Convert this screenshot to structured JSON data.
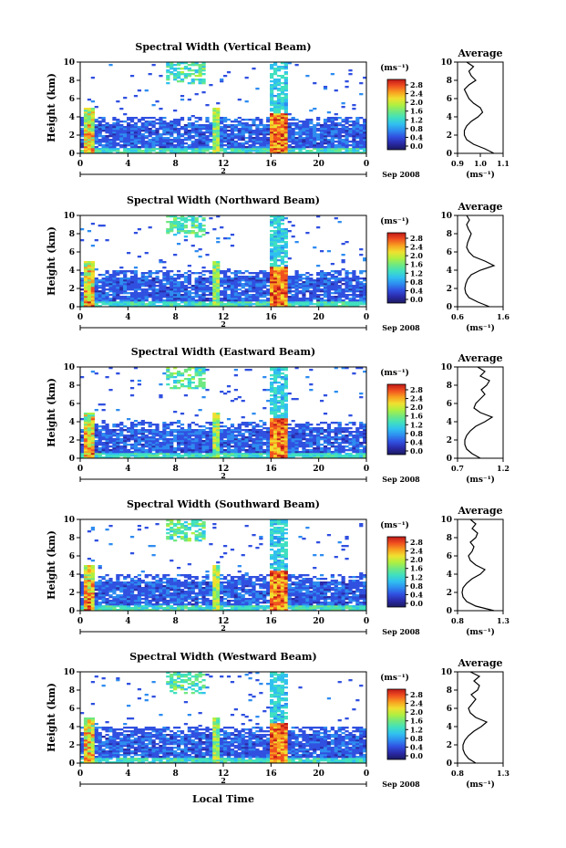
{
  "xlabel": "Local Time",
  "colorbar_unit": "(ms⁻¹)",
  "colorbar_ticks": [
    "0.0",
    "0.4",
    "0.8",
    "1.2",
    "1.6",
    "2.0",
    "2.4",
    "2.8"
  ],
  "colormap": [
    "#1a1a60",
    "#2a2aa8",
    "#3050e0",
    "#2e8cf0",
    "#30c0f0",
    "#40e0c0",
    "#70e880",
    "#b0f040",
    "#f0e030",
    "#f8a020",
    "#f05020",
    "#c01818"
  ],
  "chart_data": [
    {
      "type": "heatmap",
      "title": "Spectral Width (Vertical Beam)",
      "ylabel": "Height (km)",
      "ylim": [
        0,
        10
      ],
      "yticks": [
        0,
        2,
        4,
        6,
        8,
        10
      ],
      "xlim": [
        0,
        24
      ],
      "xticks": [
        "0",
        "4",
        "8",
        "12",
        "16",
        "20",
        "0"
      ],
      "date_marker": "2",
      "date_label": "Sep 2008",
      "average": {
        "title": "Average",
        "xlim": [
          0.9,
          1.1
        ],
        "xticks": [
          "0.9",
          "1.0",
          "1.1"
        ],
        "xlabel": "(ms⁻¹)",
        "profile_x": [
          1.06,
          1.02,
          0.97,
          0.94,
          0.93,
          0.93,
          0.94,
          0.96,
          0.99,
          1.01,
          1.0,
          0.97,
          0.95,
          0.94,
          0.93,
          0.95,
          0.98,
          0.96,
          0.95,
          0.97,
          0.94
        ]
      }
    },
    {
      "type": "heatmap",
      "title": "Spectral Width (Northward Beam)",
      "ylabel": "Height (km)",
      "ylim": [
        0,
        10
      ],
      "yticks": [
        0,
        2,
        4,
        6,
        8,
        10
      ],
      "xlim": [
        0,
        24
      ],
      "xticks": [
        "0",
        "4",
        "8",
        "12",
        "16",
        "20",
        "0"
      ],
      "date_marker": "2",
      "date_label": "Sep 2008",
      "average": {
        "title": "Average",
        "xlim": [
          0.6,
          1.6
        ],
        "xticks": [
          "0.6",
          "1.6"
        ],
        "xlabel": "(ms⁻¹)",
        "profile_x": [
          1.3,
          1.05,
          0.85,
          0.78,
          0.76,
          0.78,
          0.82,
          0.9,
          1.1,
          1.4,
          1.2,
          0.95,
          0.85,
          0.8,
          0.82,
          0.86,
          0.9,
          0.84,
          0.8,
          0.86,
          0.8
        ]
      }
    },
    {
      "type": "heatmap",
      "title": "Spectral Width (Eastward Beam)",
      "ylabel": "Height (km)",
      "ylim": [
        0,
        10
      ],
      "yticks": [
        0,
        2,
        4,
        6,
        8,
        10
      ],
      "xlim": [
        0,
        24
      ],
      "xticks": [
        "0",
        "4",
        "8",
        "12",
        "16",
        "20",
        "0"
      ],
      "date_marker": "2",
      "date_label": "Sep 2008",
      "average": {
        "title": "Average",
        "xlim": [
          0.7,
          1.2
        ],
        "xticks": [
          "0.7",
          "1.2"
        ],
        "xlabel": "(ms⁻¹)",
        "profile_x": [
          0.95,
          0.86,
          0.8,
          0.78,
          0.78,
          0.8,
          0.84,
          0.9,
          1.0,
          1.08,
          0.95,
          0.88,
          0.9,
          0.95,
          1.0,
          0.96,
          1.02,
          1.05,
          0.95,
          1.0,
          0.92
        ]
      }
    },
    {
      "type": "heatmap",
      "title": "Spectral Width (Southward Beam)",
      "ylabel": "Height (km)",
      "ylim": [
        0,
        10
      ],
      "yticks": [
        0,
        2,
        4,
        6,
        8,
        10
      ],
      "xlim": [
        0,
        24
      ],
      "xticks": [
        "0",
        "4",
        "8",
        "12",
        "16",
        "20",
        "0"
      ],
      "date_marker": "2",
      "date_label": "Sep 2008",
      "average": {
        "title": "Average",
        "xlim": [
          0.8,
          1.3
        ],
        "xticks": [
          "0.8",
          "1.3"
        ],
        "xlabel": "(ms⁻¹)",
        "profile_x": [
          1.2,
          1.0,
          0.9,
          0.86,
          0.85,
          0.86,
          0.9,
          0.96,
          1.05,
          1.1,
          1.0,
          0.94,
          0.92,
          0.96,
          0.98,
          0.94,
          1.0,
          1.02,
          0.96,
          1.0,
          0.94
        ]
      }
    },
    {
      "type": "heatmap",
      "title": "Spectral Width (Westward Beam)",
      "ylabel": "Height (km)",
      "ylim": [
        0,
        10
      ],
      "yticks": [
        0,
        2,
        4,
        6,
        8,
        10
      ],
      "xlim": [
        0,
        24
      ],
      "xticks": [
        "0",
        "4",
        "8",
        "12",
        "16",
        "20",
        "0"
      ],
      "date_marker": "2",
      "date_label": "Sep 2008",
      "average": {
        "title": "Average",
        "xlim": [
          0.8,
          1.3
        ],
        "xticks": [
          "0.8",
          "1.3"
        ],
        "xlabel": "(ms⁻¹)",
        "profile_x": [
          1.0,
          0.92,
          0.88,
          0.86,
          0.86,
          0.88,
          0.92,
          0.98,
          1.06,
          1.12,
          1.0,
          0.94,
          0.92,
          0.96,
          1.0,
          0.95,
          1.02,
          1.04,
          0.98,
          1.04,
          0.94
        ]
      }
    }
  ]
}
